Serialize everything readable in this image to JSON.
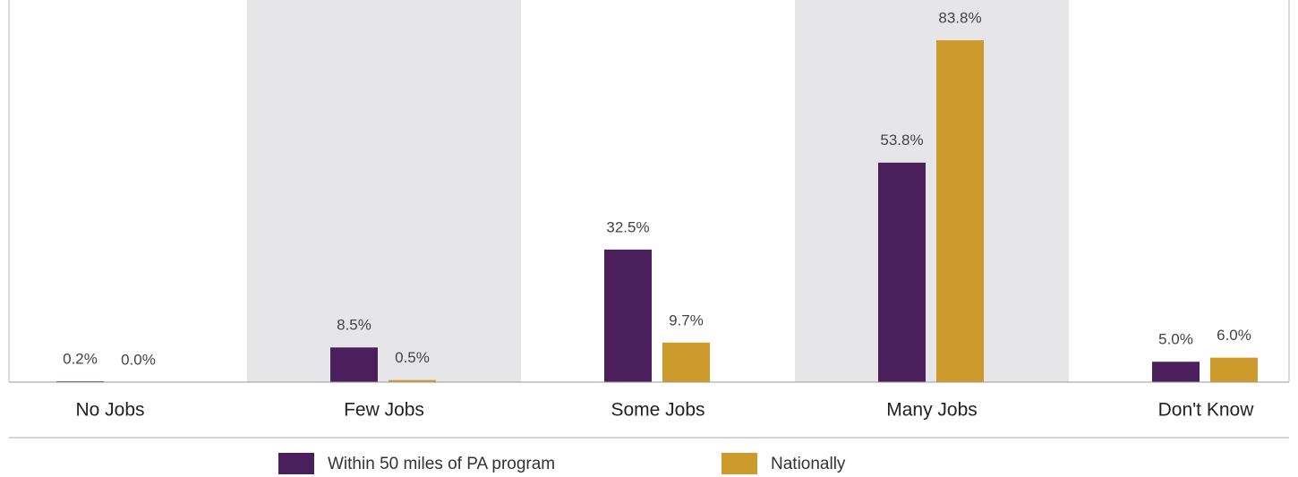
{
  "chart_data": {
    "type": "bar",
    "categories": [
      "No Jobs",
      "Few Jobs",
      "Some Jobs",
      "Many Jobs",
      "Don't Know"
    ],
    "series": [
      {
        "name": "Within 50 miles of PA program",
        "color": "#4a1f5c",
        "values": [
          0.2,
          8.5,
          32.5,
          53.8,
          5.0
        ],
        "value_labels": [
          "0.2%",
          "8.5%",
          "32.5%",
          "53.8%",
          "5.0%"
        ]
      },
      {
        "name": "Nationally",
        "color": "#cc9b2b",
        "values": [
          0.0,
          0.5,
          9.7,
          83.8,
          6.0
        ],
        "value_labels": [
          "0.0%",
          "0.5%",
          "9.7%",
          "83.8%",
          "6.0%"
        ]
      }
    ]
  }
}
